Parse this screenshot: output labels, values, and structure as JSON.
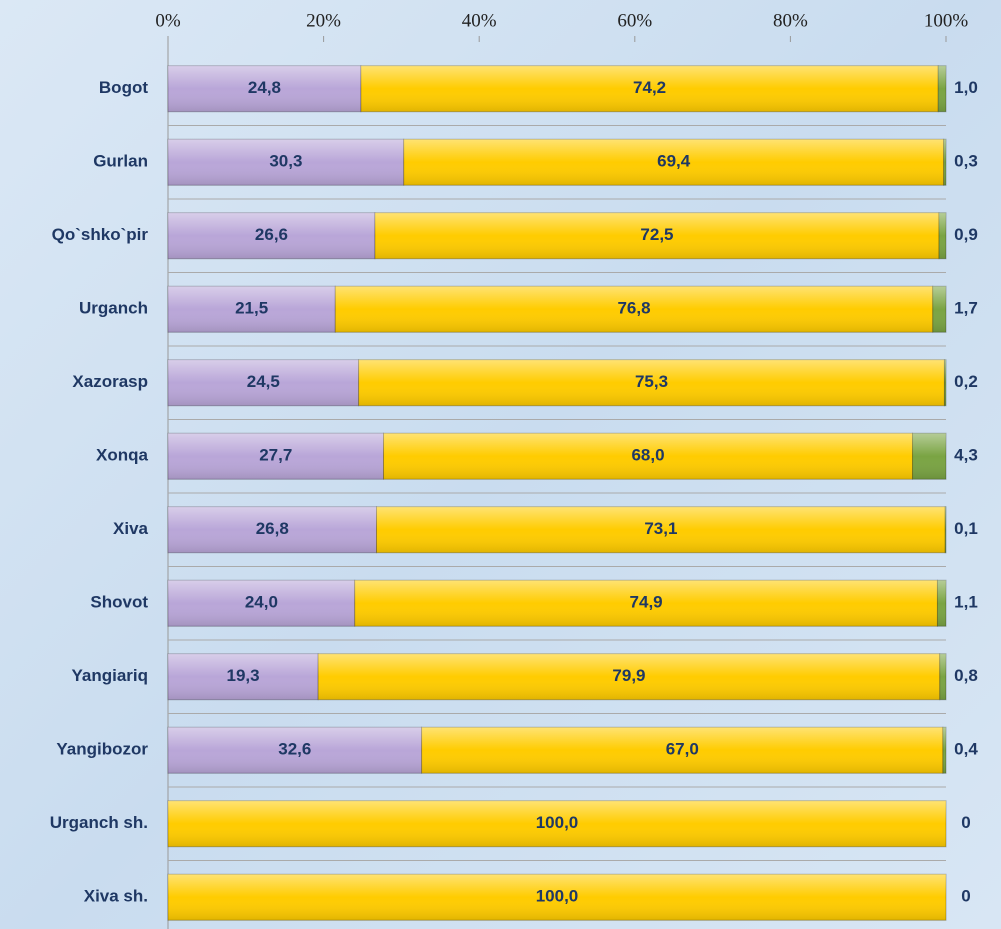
{
  "chart_data": {
    "type": "stacked-bar-horizontal",
    "categories": [
      "Bogot",
      "Gurlan",
      "Qo`shko`pir",
      "Urganch",
      "Xazorasp",
      "Xonqa",
      "Xiva",
      "Shovot",
      "Yangiariq",
      "Yangibozor",
      "Urganch sh.",
      "Xiva sh."
    ],
    "series": [
      {
        "color": "#b9a6d8",
        "values": [
          24.8,
          30.3,
          26.6,
          21.5,
          24.5,
          27.7,
          26.8,
          24.0,
          19.3,
          32.6,
          0,
          0
        ],
        "value_labels": [
          "24,8",
          "30,3",
          "26,6",
          "21,5",
          "24,5",
          "27,7",
          "26,8",
          "24,0",
          "19,3",
          "32,6",
          "0",
          "0"
        ]
      },
      {
        "color": "#ffcc00",
        "values": [
          74.2,
          69.4,
          72.5,
          76.8,
          75.3,
          68.0,
          73.1,
          74.9,
          79.9,
          67.0,
          100.0,
          100.0
        ],
        "value_labels": [
          "74,2",
          "69,4",
          "72,5",
          "76,8",
          "75,3",
          "68,0",
          "73,1",
          "74,9",
          "79,9",
          "67,0",
          "100,0",
          "100,0"
        ]
      },
      {
        "color": "#7aa443",
        "values": [
          1.0,
          0.3,
          0.9,
          1.7,
          0.2,
          4.3,
          0.1,
          1.1,
          0.8,
          0.4,
          0,
          0
        ],
        "value_labels": [
          "1,0",
          "0,3",
          "0,9",
          "1,7",
          "0,2",
          "4,3",
          "0,1",
          "1,1",
          "0,8",
          "0,4",
          "0",
          "0"
        ]
      }
    ],
    "xlim": [
      0,
      100
    ],
    "xticks": [
      {
        "value": 0,
        "label": "0%"
      },
      {
        "value": 20,
        "label": "20%"
      },
      {
        "value": 40,
        "label": "40%"
      },
      {
        "value": 60,
        "label": "60%"
      },
      {
        "value": 80,
        "label": "80%"
      },
      {
        "value": 100,
        "label": "100%"
      }
    ]
  }
}
